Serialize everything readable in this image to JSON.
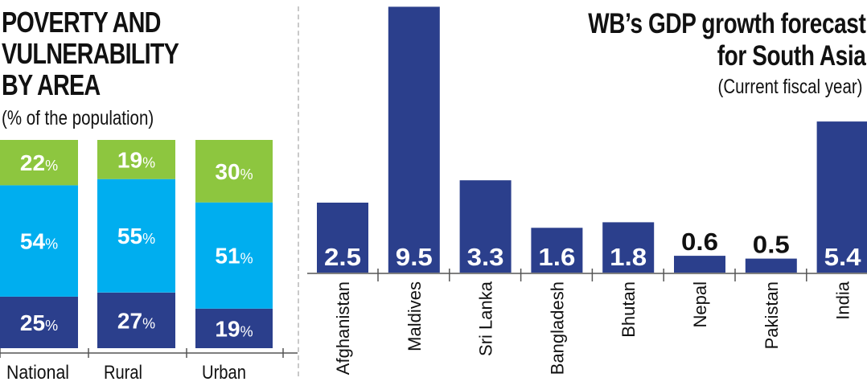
{
  "left_chart": {
    "title_lines": [
      "POVERTY AND",
      "VULNERABILITY",
      "BY AREA"
    ],
    "subtitle": "(% of the population)",
    "chart_data": {
      "type": "bar",
      "stacked": true,
      "categories": [
        "National",
        "Rural",
        "Urban"
      ],
      "series": [
        {
          "values": [
            25,
            27,
            19
          ]
        },
        {
          "values": [
            54,
            55,
            51
          ]
        },
        {
          "values": [
            22,
            19,
            30
          ]
        }
      ],
      "unit": "%"
    }
  },
  "right_chart": {
    "title_lines": [
      "WB’s GDP growth forecast",
      "for South Asia"
    ],
    "subtitle": "(Current fiscal year)",
    "chart_data": {
      "type": "bar",
      "categories": [
        "Afghanistan",
        "Maldives",
        "Sri Lanka",
        "Bangladesh",
        "Bhutan",
        "Nepal",
        "Pakistan",
        "India"
      ],
      "values": [
        2.5,
        9.5,
        3.3,
        1.6,
        1.8,
        0.6,
        0.5,
        5.4
      ]
    }
  },
  "colors": {
    "dark_blue": "#2b3f8c",
    "light_blue": "#00aeef",
    "green": "#8dc63f",
    "text": "#111111",
    "divider": "#c9c9c9"
  }
}
